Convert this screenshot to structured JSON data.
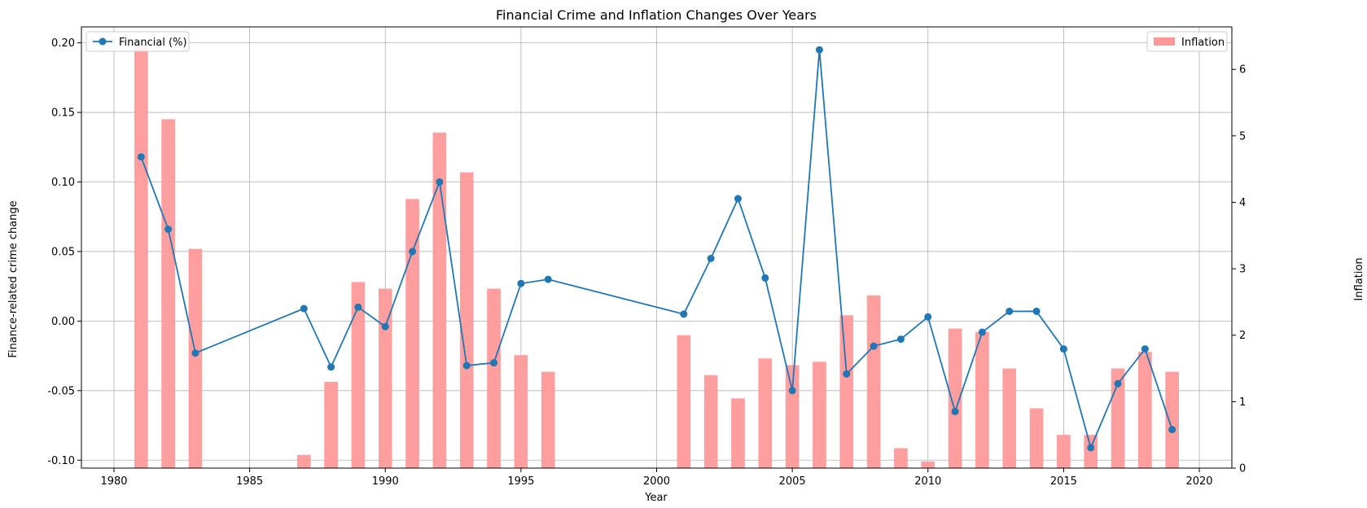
{
  "chart_data": {
    "type": "bar+line",
    "title": "Financial Crime and Inflation Changes Over Years",
    "xlabel": "Year",
    "ylabel_left": "Finance-related crime change",
    "ylabel_right": "Inflation",
    "xlim": [
      1978.8,
      2021.2
    ],
    "ylim_left": [
      -0.1057,
      0.2115
    ],
    "ylim_right": [
      0,
      6.64
    ],
    "x_ticks": [
      1980,
      1985,
      1990,
      1995,
      2000,
      2005,
      2010,
      2015,
      2020
    ],
    "y_left_ticks": [
      -0.1,
      -0.05,
      0.0,
      0.05,
      0.1,
      0.15,
      0.2
    ],
    "y_right_ticks": [
      0,
      1,
      2,
      3,
      4,
      5,
      6
    ],
    "grid": true,
    "colors": {
      "line": "#1f77b4",
      "bar": "#ff9999"
    },
    "series": [
      {
        "name": "Financial (%)",
        "type": "line",
        "axis": "left",
        "legend_position": "top-left",
        "x": [
          1981,
          1982,
          1983,
          1987,
          1988,
          1989,
          1990,
          1991,
          1992,
          1993,
          1994,
          1995,
          1996,
          2001,
          2002,
          2003,
          2004,
          2005,
          2006,
          2007,
          2008,
          2009,
          2010,
          2011,
          2012,
          2013,
          2014,
          2015,
          2016,
          2017,
          2018,
          2019
        ],
        "y": [
          0.118,
          0.066,
          -0.023,
          0.009,
          -0.033,
          0.01,
          -0.004,
          0.05,
          0.1,
          -0.032,
          -0.03,
          0.027,
          0.03,
          0.005,
          0.045,
          0.088,
          0.031,
          -0.05,
          0.195,
          -0.038,
          -0.018,
          -0.013,
          0.003,
          -0.065,
          -0.008,
          0.007,
          0.007,
          -0.02,
          -0.091,
          -0.045,
          -0.02,
          -0.078
        ]
      },
      {
        "name": "Inflation",
        "type": "bar",
        "axis": "right",
        "legend_position": "top-right",
        "x": [
          1981,
          1982,
          1983,
          1987,
          1988,
          1989,
          1990,
          1991,
          1992,
          1993,
          1994,
          1995,
          1996,
          2001,
          2002,
          2003,
          2004,
          2005,
          2006,
          2007,
          2008,
          2009,
          2010,
          2011,
          2012,
          2013,
          2014,
          2015,
          2016,
          2017,
          2018,
          2019
        ],
        "y": [
          6.35,
          5.25,
          3.3,
          0.2,
          1.3,
          2.8,
          2.7,
          4.05,
          5.05,
          4.45,
          2.7,
          1.7,
          1.45,
          2.0,
          1.4,
          1.05,
          1.65,
          1.55,
          1.6,
          2.3,
          2.6,
          0.3,
          0.1,
          2.1,
          2.05,
          1.5,
          0.9,
          0.5,
          0.5,
          1.5,
          1.75,
          1.45
        ]
      }
    ]
  }
}
